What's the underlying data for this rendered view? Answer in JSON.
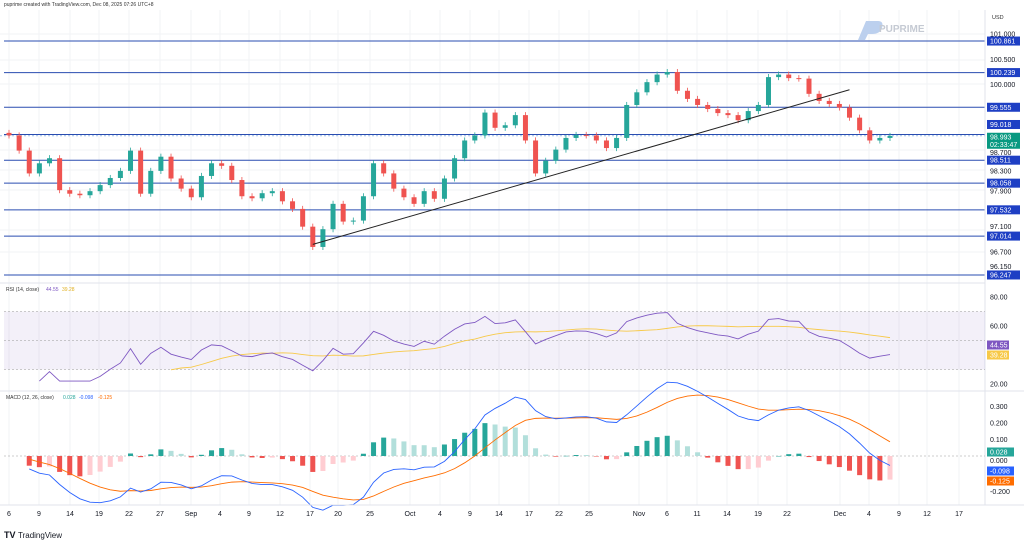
{
  "header": {
    "caption": "puprime created with TradingView.com, Dec 08, 2025 07:26 UTC+8",
    "currency": "USD",
    "watermark": "PUPRIME"
  },
  "footer": {
    "brand": "TradingView"
  },
  "colors": {
    "up": "#26a69a",
    "down": "#ef5350",
    "level_line": "#2a4db0",
    "tag_bg": "#1e3fc4",
    "last_price_bg": "#089981",
    "rsi": "#7e57c2",
    "rsi_ma": "#f7c948",
    "macd": "#2962ff",
    "signal": "#ff6d00"
  },
  "chart_data": [
    {
      "type": "candlestick",
      "x_tick_labels": [
        "6",
        "9",
        "14",
        "19",
        "22",
        "27",
        "Sep",
        "4",
        "9",
        "12",
        "17",
        "20",
        "25",
        "Oct",
        "4",
        "9",
        "14",
        "17",
        "22",
        "25",
        "Nov",
        "6",
        "11",
        "14",
        "19",
        "22",
        "Dec",
        "4",
        "9",
        "12",
        "17"
      ],
      "first_date": "Aug 6",
      "last_date": "Dec 5",
      "closes": [
        99.0,
        98.7,
        98.25,
        98.45,
        98.55,
        97.92,
        97.85,
        97.82,
        97.9,
        98.02,
        98.16,
        98.3,
        98.7,
        97.85,
        98.3,
        98.58,
        98.15,
        97.95,
        97.78,
        98.2,
        98.45,
        98.4,
        98.12,
        97.8,
        97.76,
        97.86,
        97.9,
        97.7,
        97.55,
        97.2,
        96.8,
        97.15,
        97.65,
        97.3,
        97.32,
        97.8,
        98.45,
        98.25,
        97.95,
        97.78,
        97.65,
        97.9,
        97.75,
        98.15,
        98.55,
        98.9,
        99.0,
        99.45,
        99.15,
        99.2,
        99.4,
        98.9,
        98.25,
        98.5,
        98.72,
        98.95,
        99.01,
        99.0,
        98.9,
        98.75,
        98.95,
        99.6,
        99.85,
        100.05,
        100.2,
        100.25,
        99.88,
        99.72,
        99.6,
        99.52,
        99.44,
        99.4,
        99.3,
        99.48,
        99.6,
        100.15,
        100.2,
        100.13,
        100.12,
        99.82,
        99.68,
        99.62,
        99.55,
        99.35,
        99.1,
        98.9,
        98.95,
        98.99
      ],
      "y_axis_ticks": [
        "101.000",
        "100.500",
        "100.000",
        "98.700",
        "98.300",
        "97.900",
        "97.100",
        "96.700",
        "96.150"
      ],
      "ylim": [
        96.15,
        101.15
      ],
      "horizontal_levels": [
        "100.861",
        "100.239",
        "99.555",
        "99.018",
        "98.511",
        "98.058",
        "97.532",
        "97.014",
        "96.247"
      ],
      "last_price": "98.993",
      "countdown": "02:33:47",
      "trendline": {
        "from": {
          "date": "Sep 17",
          "price": 96.85
        },
        "to": {
          "date": "Dec 1",
          "price": 99.9
        }
      }
    },
    {
      "type": "line",
      "title": "RSI (14, close)",
      "rsi_value": "44.55",
      "rsi_ma_value": "39.28",
      "y_axis_ticks": [
        "80.00",
        "60.00",
        "20.00"
      ],
      "bands": [
        70,
        50,
        30
      ],
      "ylim": [
        20,
        80
      ]
    },
    {
      "type": "bar+line",
      "title": "MACD (12, 26, close)",
      "histogram_value": "0.028",
      "macd_value": "-0.098",
      "signal_value": "-0.125",
      "y_axis_ticks": [
        "0.300",
        "0.200",
        "0.100",
        "0.000",
        "-0.200"
      ],
      "ylim": [
        -0.3,
        0.3
      ]
    }
  ]
}
